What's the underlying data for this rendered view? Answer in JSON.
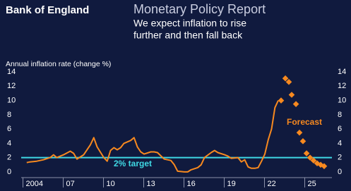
{
  "brand": "Bank of England",
  "header": {
    "title": "Monetary Policy Report",
    "subtitle": [
      "We expect inflation to rise",
      "further and then fall back"
    ]
  },
  "chart_data": {
    "type": "line",
    "ylabel": "Annual inflation rate (change %)",
    "ylim": [
      -0.8,
      14.6
    ],
    "yticks": [
      0,
      2,
      4,
      6,
      8,
      10,
      12,
      14
    ],
    "xlim": [
      2003.5,
      2026.5
    ],
    "xticks": [
      {
        "value": 2004,
        "label": "2004"
      },
      {
        "value": 2007,
        "label": "07"
      },
      {
        "value": 2010,
        "label": "10"
      },
      {
        "value": 2013,
        "label": "13"
      },
      {
        "value": 2016,
        "label": "16"
      },
      {
        "value": 2019,
        "label": "19"
      },
      {
        "value": 2022,
        "label": "22"
      },
      {
        "value": 2025,
        "label": "25"
      }
    ],
    "series": [
      {
        "style": "line",
        "color": "#f7891f",
        "x": [
          2003.75,
          2004,
          2004.5,
          2005,
          2005.5,
          2005.75,
          2006,
          2006.5,
          2007,
          2007.25,
          2007.5,
          2007.75,
          2008,
          2008.5,
          2008.75,
          2009,
          2009.5,
          2009.75,
          2010,
          2010.25,
          2010.5,
          2010.75,
          2011,
          2011.5,
          2011.75,
          2012,
          2012.25,
          2012.5,
          2013,
          2013.25,
          2013.5,
          2014,
          2014.5,
          2014.75,
          2015,
          2015.5,
          2015.75,
          2016,
          2016.5,
          2016.75,
          2017,
          2017.5,
          2017.75,
          2018,
          2018.5,
          2018.75,
          2019,
          2019.5,
          2019.75,
          2020,
          2020.25,
          2020.5,
          2020.75,
          2021,
          2021.25,
          2021.5,
          2021.75,
          2022,
          2022.25,
          2022.5
        ],
        "values": [
          1.3,
          1.4,
          1.5,
          1.7,
          2.0,
          2.4,
          2.0,
          2.4,
          2.9,
          2.6,
          1.8,
          2.1,
          2.4,
          3.8,
          4.8,
          3.5,
          2.0,
          1.5,
          3.0,
          3.4,
          3.1,
          3.4,
          4.0,
          4.4,
          4.8,
          3.5,
          2.8,
          2.5,
          2.8,
          2.8,
          2.7,
          1.8,
          1.6,
          1.0,
          0.1,
          0.0,
          0.0,
          0.3,
          0.6,
          1.0,
          2.0,
          2.7,
          3.0,
          2.7,
          2.4,
          2.2,
          1.9,
          2.0,
          1.4,
          1.7,
          0.7,
          0.5,
          0.5,
          0.6,
          1.5,
          2.5,
          4.5,
          6.0,
          9.0,
          10.0
        ]
      },
      {
        "style": "markers",
        "color": "#f7891f",
        "x": [
          2022.71,
          2023.03,
          2023.29,
          2023.5,
          2023.82,
          2024.08,
          2024.34,
          2024.61,
          2024.87,
          2025.13,
          2025.4,
          2025.66,
          2025.92
        ],
        "values": [
          10.0,
          13.1,
          12.6,
          10.8,
          9.5,
          5.5,
          4.3,
          2.6,
          2.0,
          1.6,
          1.2,
          1.0,
          0.8
        ]
      }
    ],
    "target": {
      "value": 2,
      "label": "2% target",
      "color": "#3fd8e4"
    },
    "annotation": "Forecast"
  }
}
